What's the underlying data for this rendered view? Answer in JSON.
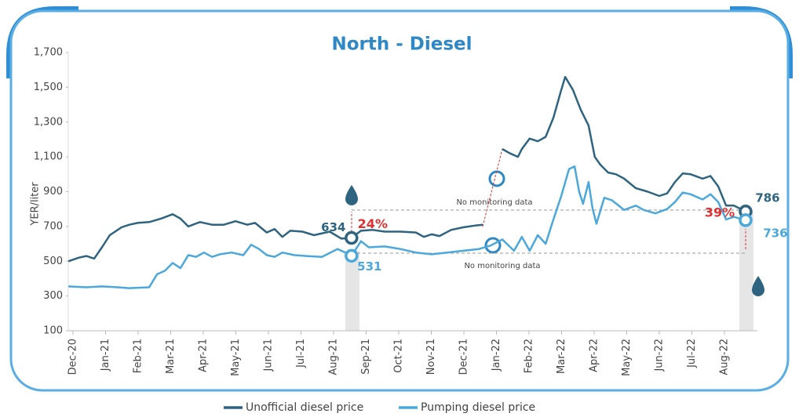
{
  "chart_data": {
    "type": "line",
    "title": "North - Diesel",
    "y_label": "YER/liter",
    "xlim": [
      -0.2,
      21
    ],
    "xticks": [
      {
        "value": 0,
        "label": "Dec-20"
      },
      {
        "value": 1,
        "label": "Jan-21"
      },
      {
        "value": 2,
        "label": "Feb-21"
      },
      {
        "value": 3,
        "label": "Mar-21"
      },
      {
        "value": 4,
        "label": "Apr-21"
      },
      {
        "value": 5,
        "label": "May-21"
      },
      {
        "value": 6,
        "label": "Jun-21"
      },
      {
        "value": 7,
        "label": "Jul-21"
      },
      {
        "value": 8,
        "label": "Aug-21"
      },
      {
        "value": 9,
        "label": "Sep-21"
      },
      {
        "value": 10,
        "label": "Oct-21"
      },
      {
        "value": 11,
        "label": "Nov-21"
      },
      {
        "value": 12,
        "label": "Dec-21"
      },
      {
        "value": 13,
        "label": "Jan-22"
      },
      {
        "value": 14,
        "label": "Feb-22"
      },
      {
        "value": 15,
        "label": "Mar-22"
      },
      {
        "value": 16,
        "label": "Apr-22"
      },
      {
        "value": 17,
        "label": "May-22"
      },
      {
        "value": 18,
        "label": "Jun-22"
      },
      {
        "value": 19,
        "label": "Jul-22"
      },
      {
        "value": 20,
        "label": "Aug-22"
      }
    ],
    "ylim": [
      100,
      1700
    ],
    "yticks": [
      100,
      300,
      500,
      700,
      900,
      {
        "value": 1100,
        "label": "1,100"
      },
      {
        "value": 1300,
        "label": "1,300"
      },
      {
        "value": 1500,
        "label": "1,500"
      },
      {
        "value": 1700,
        "label": "1,700"
      }
    ],
    "series": [
      {
        "name": "Unofficial diesel price",
        "color": "#2e6480",
        "x": [
          -0.14,
          0.17,
          0.41,
          0.65,
          0.89,
          1.13,
          1.49,
          1.73,
          1.98,
          2.34,
          2.7,
          3.06,
          3.3,
          3.54,
          3.9,
          4.27,
          4.63,
          4.99,
          5.35,
          5.59,
          5.95,
          6.19,
          6.43,
          6.67,
          7.04,
          7.4,
          7.88,
          8.24,
          8.55,
          8.84,
          9.2,
          9.57,
          10.05,
          10.53,
          10.77,
          11.01,
          11.25,
          11.61,
          11.98,
          12.34,
          12.58,
          12.88,
          13.18,
          13.42,
          13.66,
          13.78,
          14.02,
          14.27,
          14.51,
          14.75,
          14.99,
          15.11,
          15.35,
          15.59,
          15.83,
          16.02,
          16.19,
          16.43,
          16.67,
          16.92,
          17.28,
          17.64,
          18.0,
          18.24,
          18.48,
          18.72,
          18.96,
          19.33,
          19.57,
          19.81,
          20.05,
          20.29,
          20.65
        ],
        "values": [
          500,
          520,
          530,
          515,
          580,
          650,
          695,
          710,
          720,
          725,
          745,
          770,
          745,
          700,
          725,
          710,
          710,
          730,
          710,
          720,
          665,
          685,
          640,
          675,
          670,
          650,
          670,
          630,
          634,
          675,
          680,
          670,
          670,
          665,
          640,
          655,
          645,
          680,
          695,
          705,
          710,
          null,
          1145,
          1120,
          1100,
          1145,
          1205,
          1190,
          1215,
          1325,
          1485,
          1560,
          1485,
          1370,
          1280,
          1100,
          1055,
          1010,
          1000,
          975,
          920,
          900,
          875,
          890,
          955,
          1005,
          1000,
          975,
          990,
          930,
          820,
          820,
          786
        ]
      },
      {
        "name": "Pumping diesel price",
        "color": "#4aa8dc",
        "x": [
          -0.14,
          0.41,
          0.89,
          1.37,
          1.73,
          2.34,
          2.58,
          2.82,
          3.06,
          3.3,
          3.54,
          3.78,
          4.02,
          4.27,
          4.51,
          4.87,
          5.23,
          5.47,
          5.71,
          5.95,
          6.19,
          6.43,
          6.8,
          7.16,
          7.64,
          8.12,
          8.36,
          8.55,
          8.84,
          9.08,
          9.57,
          10.05,
          10.53,
          11.01,
          11.49,
          11.98,
          12.46,
          12.82,
          13.18,
          13.54,
          13.78,
          14.02,
          14.27,
          14.51,
          14.75,
          14.99,
          15.23,
          15.4,
          15.54,
          15.66,
          15.83,
          15.95,
          16.07,
          16.31,
          16.55,
          16.92,
          17.28,
          17.52,
          17.88,
          18.24,
          18.48,
          18.72,
          18.96,
          19.33,
          19.57,
          19.81,
          20.05,
          20.29,
          20.65
        ],
        "values": [
          355,
          350,
          355,
          350,
          345,
          350,
          425,
          445,
          490,
          460,
          535,
          525,
          550,
          525,
          540,
          550,
          535,
          595,
          570,
          535,
          525,
          550,
          535,
          530,
          525,
          570,
          550,
          531,
          615,
          580,
          585,
          570,
          550,
          540,
          550,
          560,
          570,
          590,
          625,
          560,
          640,
          560,
          650,
          600,
          740,
          875,
          1030,
          1045,
          900,
          830,
          955,
          805,
          715,
          865,
          850,
          795,
          820,
          795,
          775,
          800,
          840,
          895,
          885,
          855,
          885,
          840,
          740,
          755,
          736
        ]
      }
    ],
    "highlights": [
      {
        "x": 8.55,
        "unofficial": 634,
        "pumping": 531,
        "change": {
          "value": 24,
          "label": "24%"
        }
      },
      {
        "x": 20.65,
        "unofficial": 786,
        "pumping": 736,
        "change": {
          "value": 39,
          "label": "39%"
        }
      }
    ],
    "notes": [
      "No monitoring data",
      "No monitoring data"
    ]
  }
}
